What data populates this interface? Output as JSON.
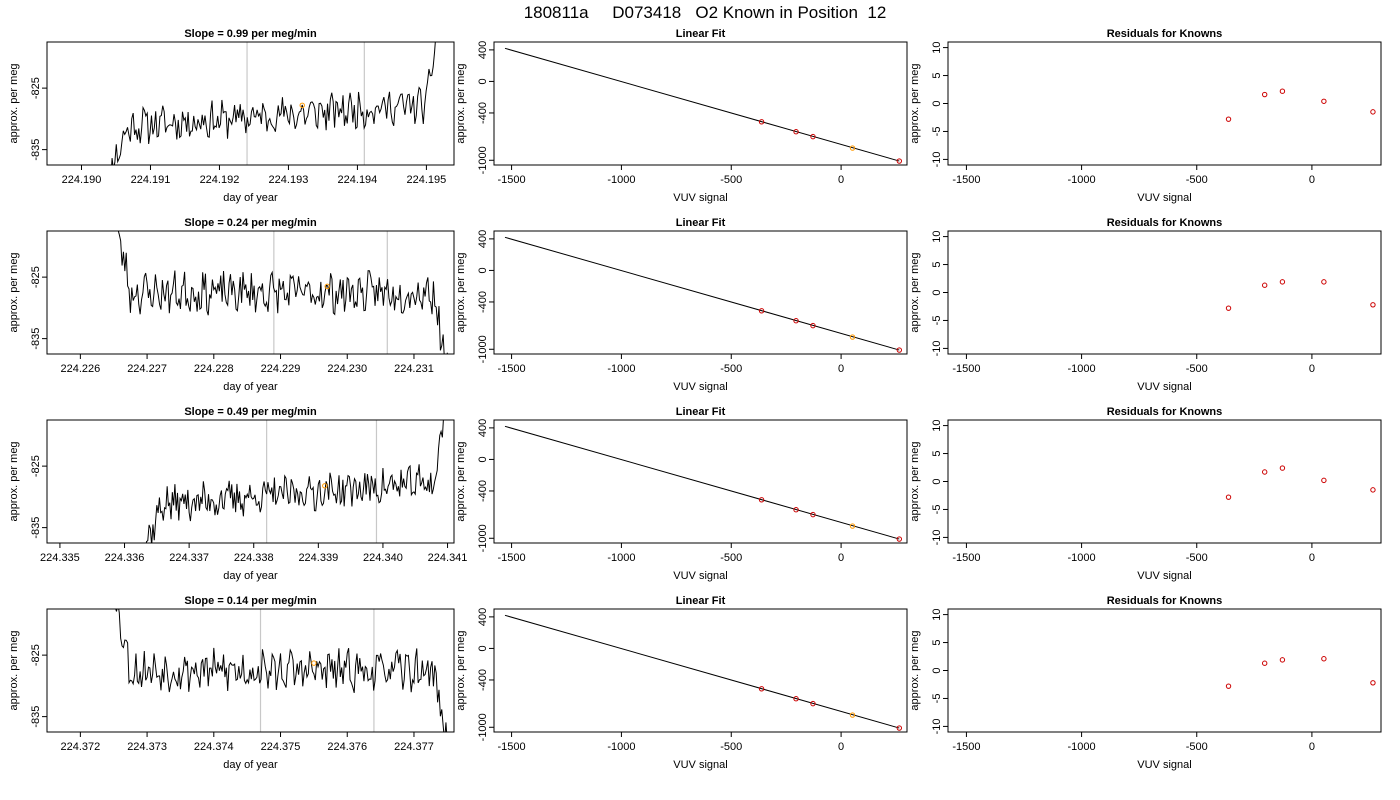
{
  "page": {
    "title": "180811a     D073418   O2 Known in Position  12"
  },
  "colors": {
    "line": "#000000",
    "marker_known": "#cc0000",
    "marker_sample": "#ff9900",
    "guide": "#c8c8c8"
  },
  "chart_data": [
    {
      "type": "line",
      "panel": "timeseries",
      "title": "Slope =  0.99  per meg/min",
      "xlabel": "day of year",
      "ylabel": "approx. per meg",
      "xlim": [
        224.1895,
        224.1954
      ],
      "ylim": [
        -837.5,
        -817.5
      ],
      "xticks": [
        224.19,
        224.191,
        224.192,
        224.193,
        224.194,
        224.195
      ],
      "xtick_labels": [
        "224.190",
        "224.191",
        "224.192",
        "224.193",
        "224.194",
        "224.195"
      ],
      "yticks": [
        -825,
        -835
      ],
      "ytick_labels": [
        "-825",
        "-835"
      ],
      "vlines": [
        224.1924,
        224.1941
      ],
      "trace": {
        "start": 224.1903,
        "end": 224.1952,
        "seed": 11,
        "shape": "rise",
        "base": -829.5,
        "amp": 2.5
      },
      "marker": {
        "x": 224.1932,
        "y": -827.8
      }
    },
    {
      "type": "scatter",
      "panel": "fit",
      "title": "Linear Fit",
      "xlabel": "VUV signal",
      "ylabel": "approx. per meg",
      "xlim": [
        -1580,
        300
      ],
      "ylim": [
        -1060,
        500
      ],
      "xticks": [
        -1500,
        -1000,
        -500,
        0
      ],
      "xtick_labels": [
        "-1500",
        "-1000",
        "-500",
        "0"
      ],
      "yticks": [
        400,
        0,
        -400,
        -1000
      ],
      "ytick_labels": [
        "400",
        "0",
        "-400",
        "-1000"
      ],
      "line": [
        [
          -1530,
          420
        ],
        [
          265,
          -1010
        ]
      ],
      "points": [
        {
          "x": -362,
          "y": -512
        },
        {
          "x": -205,
          "y": -638
        },
        {
          "x": -128,
          "y": -700
        },
        {
          "x": 265,
          "y": -1010
        }
      ],
      "sample": {
        "x": 52,
        "y": -845
      }
    },
    {
      "type": "scatter",
      "panel": "residuals",
      "title": "Residuals for Knowns",
      "xlabel": "VUV signal",
      "ylabel": "approx. per meg",
      "xlim": [
        -1580,
        300
      ],
      "ylim": [
        -11,
        11
      ],
      "xticks": [
        -1500,
        -1000,
        -500,
        0
      ],
      "xtick_labels": [
        "-1500",
        "-1000",
        "-500",
        "0"
      ],
      "yticks": [
        10,
        5,
        0,
        -5,
        -10
      ],
      "ytick_labels": [
        "10",
        "5",
        "0",
        "-5",
        "-10"
      ],
      "points": [
        {
          "x": -362,
          "y": -2.8
        },
        {
          "x": -205,
          "y": 1.6
        },
        {
          "x": -128,
          "y": 2.2
        },
        {
          "x": 52,
          "y": 0.4
        },
        {
          "x": 265,
          "y": -1.5
        }
      ]
    },
    {
      "type": "line",
      "panel": "timeseries",
      "title": "Slope =  0.24  per meg/min",
      "xlabel": "day of year",
      "ylabel": "approx. per meg",
      "xlim": [
        224.2255,
        224.2316
      ],
      "ylim": [
        -837.5,
        -817.5
      ],
      "xticks": [
        224.226,
        224.227,
        224.228,
        224.229,
        224.23,
        224.231
      ],
      "xtick_labels": [
        "224.226",
        "224.227",
        "224.228",
        "224.229",
        "224.230",
        "224.231"
      ],
      "yticks": [
        -825,
        -835
      ],
      "ytick_labels": [
        "-825",
        "-835"
      ],
      "vlines": [
        224.2289,
        224.2306
      ],
      "trace": {
        "start": 224.2265,
        "end": 224.2315,
        "seed": 23,
        "shape": "flat",
        "base": -827.5,
        "amp": 2.8
      },
      "marker": {
        "x": 224.2297,
        "y": -826.5
      }
    },
    {
      "type": "scatter",
      "panel": "fit",
      "title": "Linear Fit",
      "xlabel": "VUV signal",
      "ylabel": "approx. per meg",
      "xlim": [
        -1580,
        300
      ],
      "ylim": [
        -1060,
        500
      ],
      "xticks": [
        -1500,
        -1000,
        -500,
        0
      ],
      "xtick_labels": [
        "-1500",
        "-1000",
        "-500",
        "0"
      ],
      "yticks": [
        400,
        0,
        -400,
        -1000
      ],
      "ytick_labels": [
        "400",
        "0",
        "-400",
        "-1000"
      ],
      "line": [
        [
          -1530,
          420
        ],
        [
          265,
          -1010
        ]
      ],
      "points": [
        {
          "x": -362,
          "y": -512
        },
        {
          "x": -205,
          "y": -638
        },
        {
          "x": -128,
          "y": -700
        },
        {
          "x": 265,
          "y": -1010
        }
      ],
      "sample": {
        "x": 52,
        "y": -845
      }
    },
    {
      "type": "scatter",
      "panel": "residuals",
      "title": "Residuals for Knowns",
      "xlabel": "VUV signal",
      "ylabel": "approx. per meg",
      "xlim": [
        -1580,
        300
      ],
      "ylim": [
        -11,
        11
      ],
      "xticks": [
        -1500,
        -1000,
        -500,
        0
      ],
      "xtick_labels": [
        "-1500",
        "-1000",
        "-500",
        "0"
      ],
      "yticks": [
        10,
        5,
        0,
        -5,
        -10
      ],
      "ytick_labels": [
        "10",
        "5",
        "0",
        "-5",
        "-10"
      ],
      "points": [
        {
          "x": -362,
          "y": -2.8
        },
        {
          "x": -205,
          "y": 1.3
        },
        {
          "x": -128,
          "y": 1.9
        },
        {
          "x": 52,
          "y": 1.9
        },
        {
          "x": 265,
          "y": -2.2
        }
      ]
    },
    {
      "type": "line",
      "panel": "timeseries",
      "title": "Slope =  0.49  per meg/min",
      "xlabel": "day of year",
      "ylabel": "approx. per meg",
      "xlim": [
        224.3348,
        224.3411
      ],
      "ylim": [
        -837.5,
        -817.5
      ],
      "xticks": [
        224.335,
        224.336,
        224.337,
        224.338,
        224.339,
        224.34,
        224.341
      ],
      "xtick_labels": [
        "224.335",
        "224.336",
        "224.337",
        "224.338",
        "224.339",
        "224.340",
        "224.341"
      ],
      "yticks": [
        -825,
        -835
      ],
      "ytick_labels": [
        "-825",
        "-835"
      ],
      "vlines": [
        224.3382,
        224.3399
      ],
      "trace": {
        "start": 224.3362,
        "end": 224.341,
        "seed": 37,
        "shape": "rise",
        "base": -829.5,
        "amp": 2.5
      },
      "marker": {
        "x": 224.3391,
        "y": -828.2
      }
    },
    {
      "type": "scatter",
      "panel": "fit",
      "title": "Linear Fit",
      "xlabel": "VUV signal",
      "ylabel": "approx. per meg",
      "xlim": [
        -1580,
        300
      ],
      "ylim": [
        -1060,
        500
      ],
      "xticks": [
        -1500,
        -1000,
        -500,
        0
      ],
      "xtick_labels": [
        "-1500",
        "-1000",
        "-500",
        "0"
      ],
      "yticks": [
        400,
        0,
        -400,
        -1000
      ],
      "ytick_labels": [
        "400",
        "0",
        "-400",
        "-1000"
      ],
      "line": [
        [
          -1530,
          420
        ],
        [
          265,
          -1010
        ]
      ],
      "points": [
        {
          "x": -362,
          "y": -512
        },
        {
          "x": -205,
          "y": -638
        },
        {
          "x": -128,
          "y": -700
        },
        {
          "x": 265,
          "y": -1010
        }
      ],
      "sample": {
        "x": 52,
        "y": -845
      }
    },
    {
      "type": "scatter",
      "panel": "residuals",
      "title": "Residuals for Knowns",
      "xlabel": "VUV signal",
      "ylabel": "approx. per meg",
      "xlim": [
        -1580,
        300
      ],
      "ylim": [
        -11,
        11
      ],
      "xticks": [
        -1500,
        -1000,
        -500,
        0
      ],
      "xtick_labels": [
        "-1500",
        "-1000",
        "-500",
        "0"
      ],
      "yticks": [
        10,
        5,
        0,
        -5,
        -10
      ],
      "ytick_labels": [
        "10",
        "5",
        "0",
        "-5",
        "-10"
      ],
      "points": [
        {
          "x": -362,
          "y": -2.8
        },
        {
          "x": -205,
          "y": 1.7
        },
        {
          "x": -128,
          "y": 2.4
        },
        {
          "x": 52,
          "y": 0.2
        },
        {
          "x": 265,
          "y": -1.5
        }
      ]
    },
    {
      "type": "line",
      "panel": "timeseries",
      "title": "Slope =  0.14  per meg/min",
      "xlabel": "day of year",
      "ylabel": "approx. per meg",
      "xlim": [
        224.3715,
        224.3776
      ],
      "ylim": [
        -837.5,
        -817.5
      ],
      "xticks": [
        224.372,
        224.373,
        224.374,
        224.375,
        224.376,
        224.377
      ],
      "xtick_labels": [
        "224.372",
        "224.373",
        "224.374",
        "224.375",
        "224.376",
        "224.377"
      ],
      "yticks": [
        -825,
        -835
      ],
      "ytick_labels": [
        "-825",
        "-835"
      ],
      "vlines": [
        224.3747,
        224.3764
      ],
      "trace": {
        "start": 224.3725,
        "end": 224.3775,
        "seed": 53,
        "shape": "flat",
        "base": -827.5,
        "amp": 2.8
      },
      "marker": {
        "x": 224.3755,
        "y": -826.3
      }
    },
    {
      "type": "scatter",
      "panel": "fit",
      "title": "Linear Fit",
      "xlabel": "VUV signal",
      "ylabel": "approx. per meg",
      "xlim": [
        -1580,
        300
      ],
      "ylim": [
        -1060,
        500
      ],
      "xticks": [
        -1500,
        -1000,
        -500,
        0
      ],
      "xtick_labels": [
        "-1500",
        "-1000",
        "-500",
        "0"
      ],
      "yticks": [
        400,
        0,
        -400,
        -1000
      ],
      "ytick_labels": [
        "400",
        "0",
        "-400",
        "-1000"
      ],
      "line": [
        [
          -1530,
          420
        ],
        [
          265,
          -1010
        ]
      ],
      "points": [
        {
          "x": -362,
          "y": -512
        },
        {
          "x": -205,
          "y": -638
        },
        {
          "x": -128,
          "y": -700
        },
        {
          "x": 265,
          "y": -1010
        }
      ],
      "sample": {
        "x": 52,
        "y": -845
      }
    },
    {
      "type": "scatter",
      "panel": "residuals",
      "title": "Residuals for Knowns",
      "xlabel": "VUV signal",
      "ylabel": "approx. per meg",
      "xlim": [
        -1580,
        300
      ],
      "ylim": [
        -11,
        11
      ],
      "xticks": [
        -1500,
        -1000,
        -500,
        0
      ],
      "xtick_labels": [
        "-1500",
        "-1000",
        "-500",
        "0"
      ],
      "yticks": [
        10,
        5,
        0,
        -5,
        -10
      ],
      "ytick_labels": [
        "10",
        "5",
        "0",
        "-5",
        "-10"
      ],
      "points": [
        {
          "x": -362,
          "y": -2.8
        },
        {
          "x": -205,
          "y": 1.3
        },
        {
          "x": -128,
          "y": 1.9
        },
        {
          "x": 52,
          "y": 2.1
        },
        {
          "x": 265,
          "y": -2.2
        }
      ]
    }
  ]
}
